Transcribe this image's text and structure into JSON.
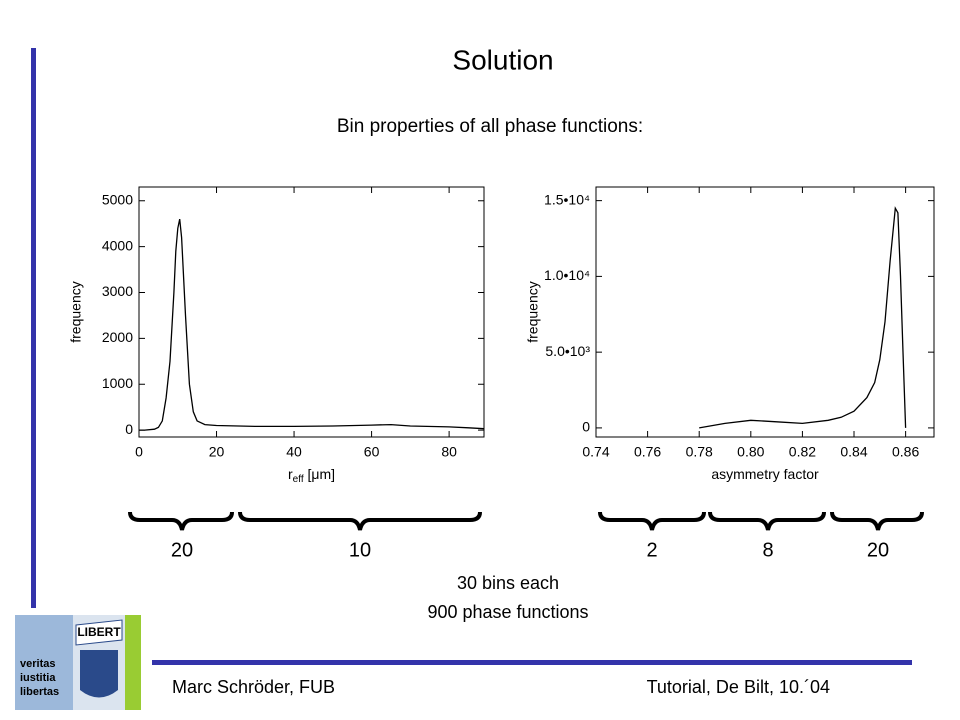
{
  "slide": {
    "title": "Solution",
    "subtitle": "Bin properties of all phase functions:",
    "braces": [
      "20",
      "10",
      "2",
      "8",
      "20"
    ],
    "notes": [
      "30 bins each",
      "900 phase functions"
    ],
    "footer_left": "Marc Schröder, FUB",
    "footer_right": "Tutorial, De Bilt, 10.´04",
    "logo": {
      "banner": "LIBERT",
      "motto": [
        "veritas",
        "iustitia",
        "libertas"
      ]
    }
  },
  "chart_data": [
    {
      "type": "line",
      "ylabel": "frequency",
      "xlabel_parts": [
        "r",
        "eff",
        " [μm]"
      ],
      "x": [
        0,
        1.5,
        4,
        5,
        6,
        7,
        8,
        9,
        9.5,
        10,
        10.5,
        11,
        12,
        13,
        14,
        15,
        17,
        20,
        30,
        40,
        50,
        60,
        65,
        70,
        80,
        85,
        89
      ],
      "series": [
        {
          "name": "frequency",
          "color": "#000000",
          "values": [
            0,
            0,
            20,
            60,
            200,
            700,
            1500,
            3000,
            3900,
            4400,
            4600,
            4200,
            2500,
            1000,
            400,
            200,
            120,
            100,
            80,
            80,
            90,
            110,
            120,
            90,
            70,
            50,
            30
          ]
        }
      ],
      "xlim": [
        0,
        89
      ],
      "ylim": [
        -150,
        5300
      ],
      "xticks": [
        0,
        20,
        40,
        60,
        80
      ],
      "yticks": [
        0,
        1000,
        2000,
        3000,
        4000,
        5000
      ]
    },
    {
      "type": "line",
      "ylabel": "frequency",
      "xlabel_parts": [
        "asymmetry factor"
      ],
      "x": [
        0.78,
        0.79,
        0.8,
        0.81,
        0.82,
        0.83,
        0.835,
        0.84,
        0.845,
        0.848,
        0.85,
        0.852,
        0.854,
        0.856,
        0.857,
        0.858,
        0.859,
        0.86
      ],
      "series": [
        {
          "name": "frequency",
          "color": "#000000",
          "values": [
            0,
            300,
            500,
            400,
            300,
            500,
            700,
            1100,
            2000,
            3000,
            4500,
            7000,
            11000,
            14500,
            14200,
            10000,
            5000,
            0
          ]
        }
      ],
      "xlim": [
        0.74,
        0.871
      ],
      "ylim": [
        -600,
        15900
      ],
      "xticks": [
        0.74,
        0.76,
        0.78,
        {
          "value": 0.8,
          "label": "0.80"
        },
        0.82,
        0.84,
        0.86
      ],
      "yticks": [
        0,
        {
          "value": 5000,
          "label": "5.0•10³"
        },
        {
          "value": 10000,
          "label": "1.0•10⁴"
        },
        {
          "value": 15000,
          "label": "1.5•10⁴"
        }
      ]
    }
  ]
}
